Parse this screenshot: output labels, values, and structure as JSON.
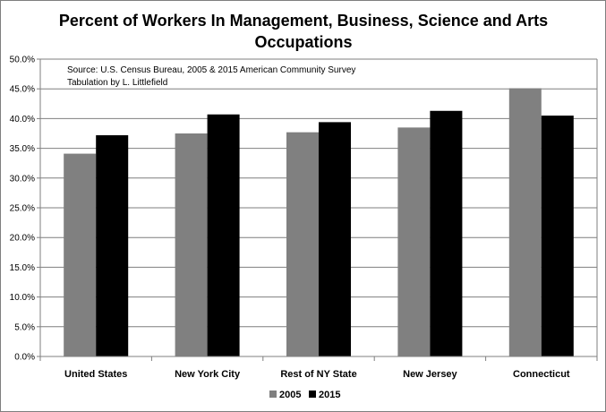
{
  "chart_data": {
    "type": "bar",
    "title_lines": [
      "Percent of Workers In Management, Business, Science and Arts",
      "Occupations"
    ],
    "categories": [
      "United States",
      "New York City",
      "Rest of NY State",
      "New Jersey",
      "Connecticut"
    ],
    "series": [
      {
        "name": "2005",
        "values": [
          34.1,
          37.5,
          37.7,
          38.5,
          45.1
        ],
        "color": "#808080"
      },
      {
        "name": "2015",
        "values": [
          37.2,
          40.7,
          39.4,
          41.3,
          40.5
        ],
        "color": "#000000"
      }
    ],
    "ylim": [
      0,
      50
    ],
    "y_ticks": [
      "0.0%",
      "5.0%",
      "10.0%",
      "15.0%",
      "20.0%",
      "25.0%",
      "30.0%",
      "35.0%",
      "40.0%",
      "45.0%",
      "50.0%"
    ],
    "grid": true,
    "legend_position": "bottom",
    "annotation_lines": [
      "Source:  U.S. Census Bureau, 2005 & 2015 American Community Survey",
      "Tabulation by L. Littlefield"
    ]
  }
}
